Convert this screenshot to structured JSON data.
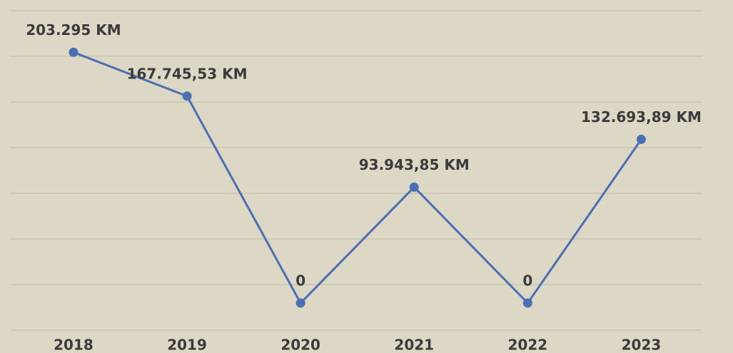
{
  "chart_data": {
    "type": "line",
    "categories": [
      "2018",
      "2019",
      "2020",
      "2021",
      "2022",
      "2023"
    ],
    "series": [
      {
        "color": "#4a6fb5",
        "values": [
          203295,
          167745.53,
          0,
          93943.85,
          0,
          132693.89
        ],
        "value_labels": [
          "203.295 KM",
          "167.745,53 KM",
          "0",
          "93.943,85 KM",
          "0",
          "132.693,89 KM"
        ]
      }
    ],
    "ylim": [
      -22000,
      237000
    ],
    "yticks": [
      -22000,
      15000,
      52000,
      89000,
      126000,
      163000,
      200000,
      237000
    ],
    "grid": true
  }
}
